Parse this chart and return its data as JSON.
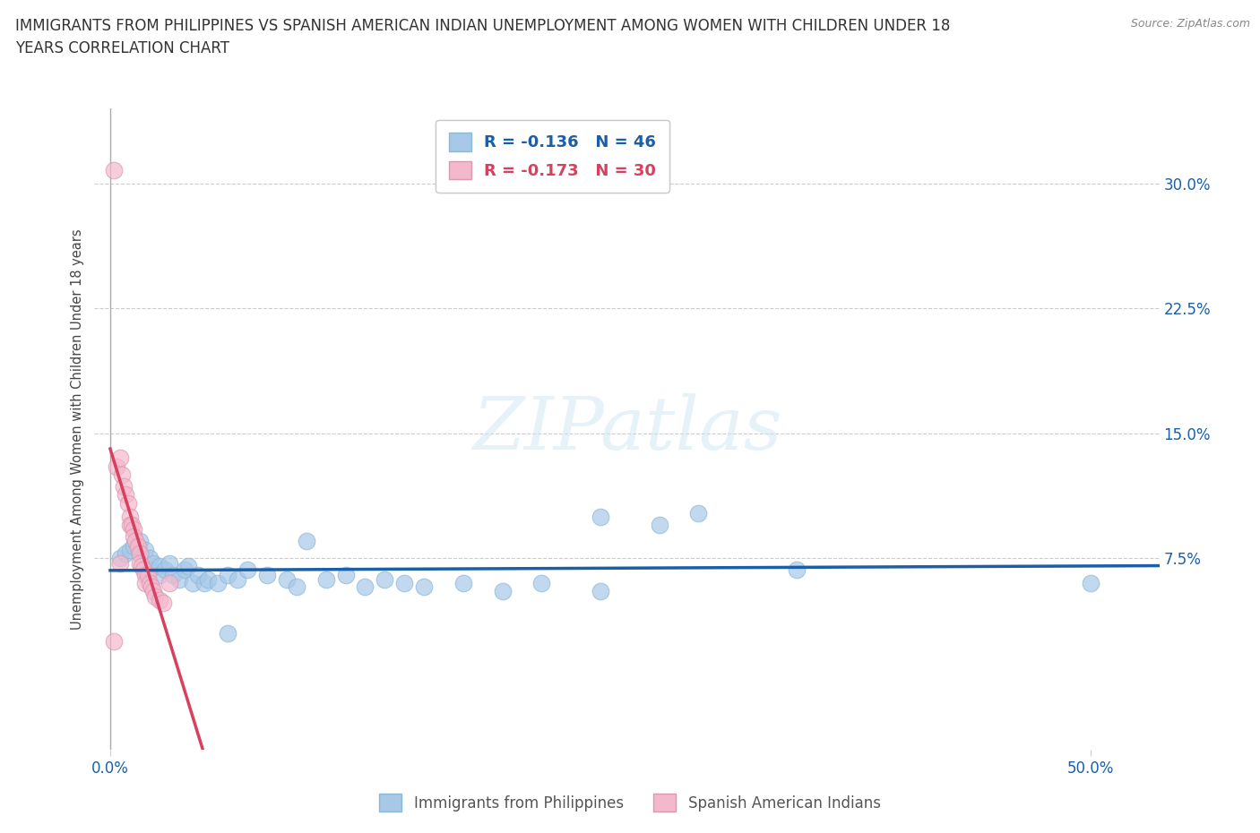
{
  "title_line1": "IMMIGRANTS FROM PHILIPPINES VS SPANISH AMERICAN INDIAN UNEMPLOYMENT AMONG WOMEN WITH CHILDREN UNDER 18",
  "title_line2": "YEARS CORRELATION CHART",
  "source": "Source: ZipAtlas.com",
  "ylabel": "Unemployment Among Women with Children Under 18 years",
  "ytick_labels": [
    "7.5%",
    "15.0%",
    "22.5%",
    "30.0%"
  ],
  "ytick_values": [
    0.075,
    0.15,
    0.225,
    0.3
  ],
  "xtick_labels": [
    "0.0%",
    "50.0%"
  ],
  "xtick_values": [
    0.0,
    0.5
  ],
  "xlim": [
    -0.008,
    0.535
  ],
  "ylim": [
    -0.04,
    0.345
  ],
  "watermark_text": "ZIPatlas",
  "legend_r_blue": "-0.136",
  "legend_n_blue": "46",
  "legend_r_pink": "-0.173",
  "legend_n_pink": "30",
  "blue_fill": "#a8c8e8",
  "pink_fill": "#f4b8cc",
  "blue_line_color": "#1a5fa8",
  "pink_line_color": "#d84060",
  "blue_scatter_x": [
    0.005,
    0.008,
    0.01,
    0.012,
    0.015,
    0.015,
    0.018,
    0.02,
    0.02,
    0.022,
    0.025,
    0.025,
    0.028,
    0.03,
    0.032,
    0.035,
    0.038,
    0.04,
    0.042,
    0.045,
    0.048,
    0.05,
    0.055,
    0.06,
    0.065,
    0.07,
    0.08,
    0.09,
    0.095,
    0.1,
    0.11,
    0.12,
    0.13,
    0.14,
    0.15,
    0.16,
    0.18,
    0.2,
    0.22,
    0.25,
    0.25,
    0.28,
    0.3,
    0.35,
    0.5,
    0.06
  ],
  "blue_scatter_y": [
    0.075,
    0.078,
    0.08,
    0.082,
    0.085,
    0.078,
    0.08,
    0.075,
    0.068,
    0.072,
    0.07,
    0.065,
    0.068,
    0.072,
    0.065,
    0.062,
    0.068,
    0.07,
    0.06,
    0.065,
    0.06,
    0.062,
    0.06,
    0.065,
    0.062,
    0.068,
    0.065,
    0.062,
    0.058,
    0.085,
    0.062,
    0.065,
    0.058,
    0.062,
    0.06,
    0.058,
    0.06,
    0.055,
    0.06,
    0.055,
    0.1,
    0.095,
    0.102,
    0.068,
    0.06,
    0.03
  ],
  "pink_scatter_x": [
    0.002,
    0.003,
    0.005,
    0.006,
    0.007,
    0.008,
    0.009,
    0.01,
    0.01,
    0.011,
    0.012,
    0.012,
    0.013,
    0.014,
    0.015,
    0.015,
    0.016,
    0.017,
    0.018,
    0.018,
    0.019,
    0.02,
    0.021,
    0.022,
    0.023,
    0.025,
    0.027,
    0.03,
    0.002,
    0.005
  ],
  "pink_scatter_y": [
    0.308,
    0.13,
    0.135,
    0.125,
    0.118,
    0.113,
    0.108,
    0.1,
    0.095,
    0.095,
    0.092,
    0.088,
    0.085,
    0.082,
    0.078,
    0.072,
    0.07,
    0.068,
    0.065,
    0.06,
    0.065,
    0.06,
    0.058,
    0.055,
    0.052,
    0.05,
    0.048,
    0.06,
    0.025,
    0.072
  ]
}
